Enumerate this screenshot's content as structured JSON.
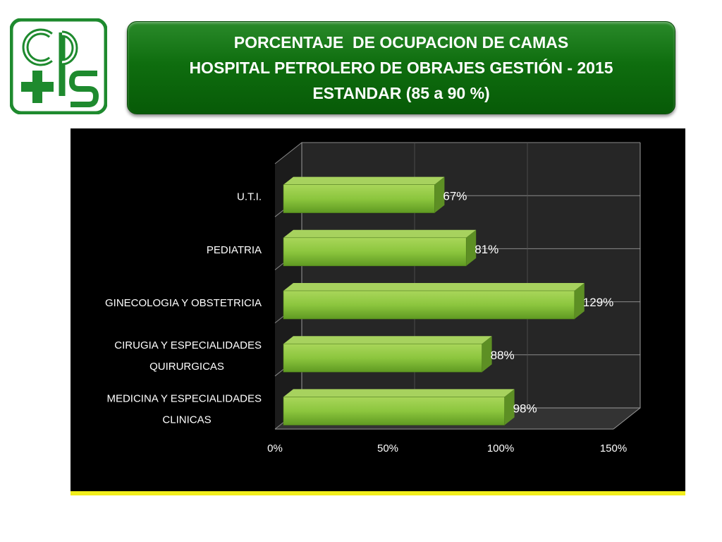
{
  "header": {
    "title_lines": [
      "PORCENTAJE  DE OCUPACION DE CAMAS",
      "HOSPITAL PETROLERO DE OBRAJES GESTIÓN - 2015",
      "ESTANDAR (85 a 90 %)"
    ]
  },
  "logo": {
    "icon": "cps-logo-icon",
    "text": "cps",
    "color": "#1e8a2e"
  },
  "colors": {
    "bar": "#8dc63f",
    "background": "#000000",
    "accent": "#f2ee1c",
    "header": "#0f6e0f"
  },
  "chart_data": {
    "type": "bar",
    "orientation": "horizontal",
    "three_d": true,
    "categories": [
      "U.T.I.",
      "PEDIATRIA",
      "GINECOLOGIA Y OBSTETRICIA",
      "CIRUGIA Y ESPECIALIDADES QUIRURGICAS",
      "MEDICINA Y ESPECIALIDADES CLINICAS"
    ],
    "category_lines": [
      [
        "U.T.I."
      ],
      [
        "PEDIATRIA"
      ],
      [
        "GINECOLOGIA Y OBSTETRICIA"
      ],
      [
        "CIRUGIA Y ESPECIALIDADES",
        "QUIRURGICAS"
      ],
      [
        "MEDICINA Y ESPECIALIDADES",
        "CLINICAS"
      ]
    ],
    "values": [
      67,
      81,
      129,
      88,
      98
    ],
    "data_labels": [
      "67%",
      "81%",
      "129%",
      "88%",
      "98%"
    ],
    "xlim": [
      0,
      150
    ],
    "x_ticks": [
      0,
      50,
      100,
      150
    ],
    "x_tick_labels": [
      "0%",
      "50%",
      "100%",
      "150%"
    ],
    "grid": true,
    "legend": "none",
    "title": "",
    "xlabel": "",
    "ylabel": ""
  }
}
